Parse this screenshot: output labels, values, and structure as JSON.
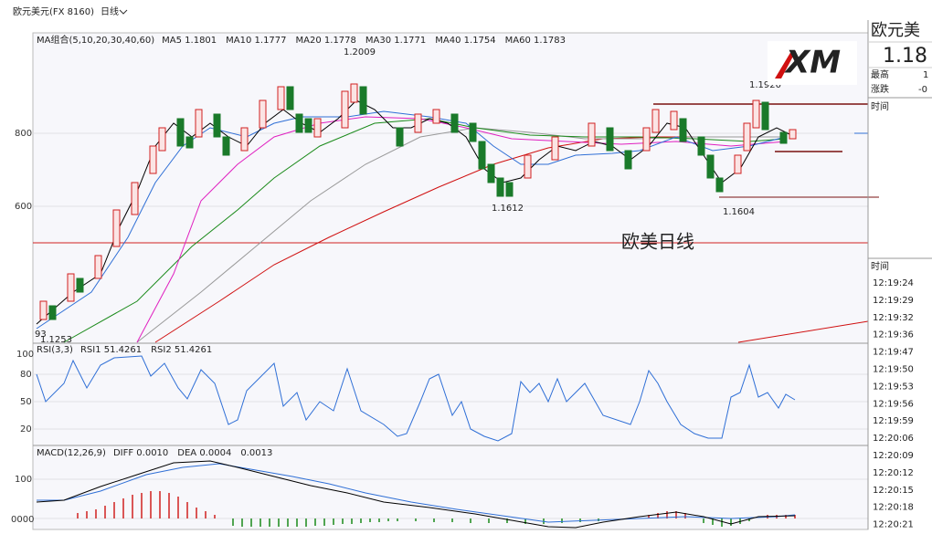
{
  "header": {
    "symbol": "欧元美元(FX 8160)",
    "period": "日线"
  },
  "ma_legend": {
    "title": "MA组合(5,10,20,30,40,60)",
    "items": [
      {
        "label": "MA5 1.1801",
        "color": "#000000"
      },
      {
        "label": "MA10 1.1777",
        "color": "#2f6fd6"
      },
      {
        "label": "MA20 1.1778",
        "color": "#e020c0"
      },
      {
        "label": "MA30 1.1771",
        "color": "#1a8a1a"
      },
      {
        "label": "MA40 1.1754",
        "color": "#808080"
      },
      {
        "label": "MA60 1.1783",
        "color": "#d01010"
      }
    ]
  },
  "price_axis": [
    "800",
    "600"
  ],
  "annotations": [
    {
      "text": "1.2009",
      "color": "#d01010"
    },
    {
      "text": "1.1612",
      "color": "#1a7a1a"
    },
    {
      "text": "1.1604",
      "color": "#1a7a1a"
    },
    {
      "text": "1.1920",
      "color": "#d01010"
    },
    {
      "text": "1.1253",
      "color": "#1a7a1a"
    },
    {
      "text": "93",
      "color": "#2050a0"
    }
  ],
  "watermark": "欧美日线",
  "rsi": {
    "title": "RSI(3,3)",
    "items": [
      {
        "label": "RSI1 51.4261",
        "color": "#000000"
      },
      {
        "label": "RSI2 51.4261",
        "color": "#2f6fd6"
      }
    ],
    "axis": [
      "100",
      "80",
      "50",
      "20"
    ]
  },
  "macd": {
    "title": "MACD(12,26,9)",
    "items": [
      {
        "label": "DIFF 0.0010",
        "color": "#000000"
      },
      {
        "label": "DEA 0.0004",
        "color": "#2f6fd6"
      },
      {
        "label": "0.0013",
        "color": "#000000"
      }
    ],
    "axis": [
      "100",
      "0000"
    ]
  },
  "side": {
    "name": "欧元美",
    "price": "1.18",
    "rows": [
      {
        "label": "最高",
        "value": "1"
      },
      {
        "label": "涨跌",
        "value": "-0"
      }
    ],
    "time_header": "时间",
    "ticks_header": "时间",
    "times": [
      "12:19:24",
      "12:19:29",
      "12:19:32",
      "12:19:36",
      "12:19:47",
      "12:19:50",
      "12:19:53",
      "12:19:56",
      "12:19:59",
      "12:20:06",
      "12:20:09",
      "12:20:12",
      "12:20:15",
      "12:20:18",
      "12:20:21"
    ]
  }
}
